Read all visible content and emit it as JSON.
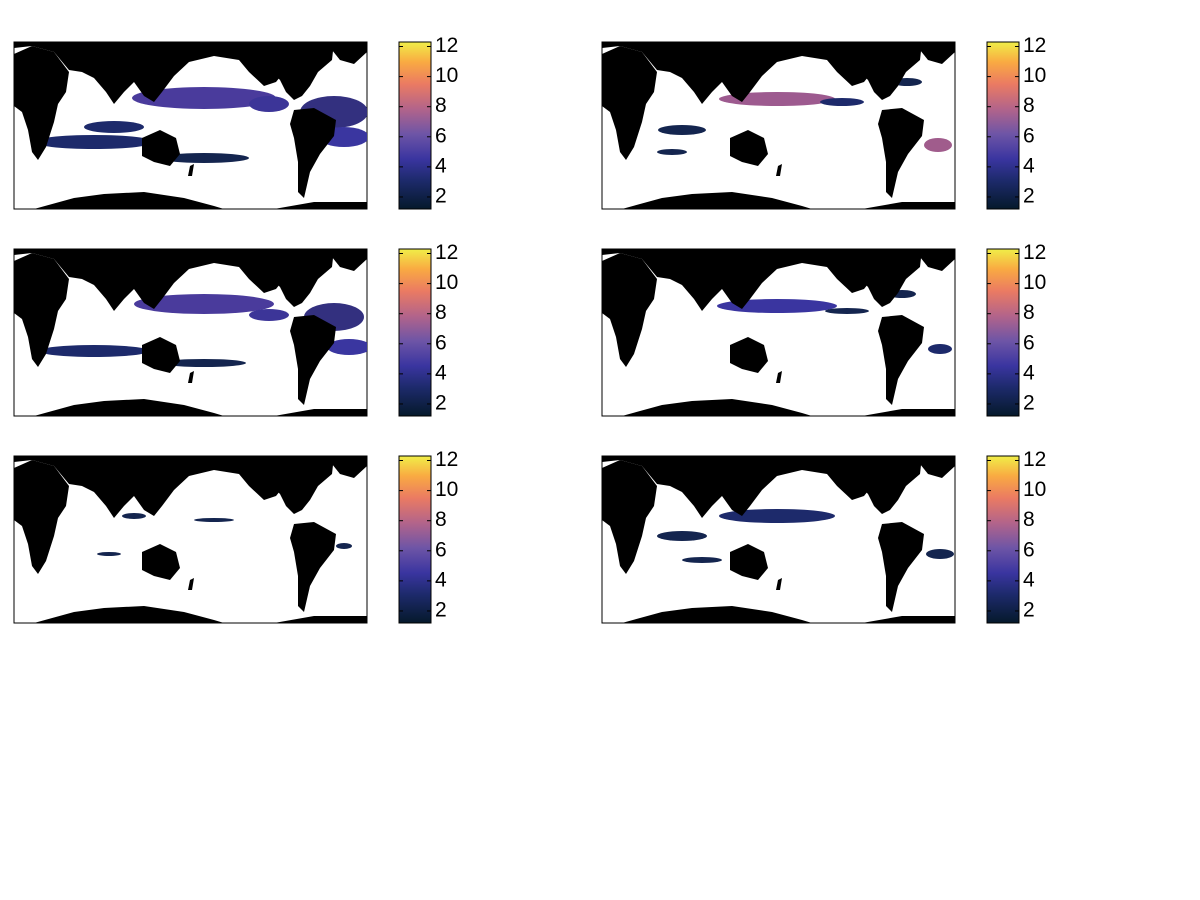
{
  "panels": [
    {
      "colorbar": {
        "clim": [
          1.2,
          12.3
        ],
        "ticks": [
          2,
          4,
          6,
          8,
          10,
          12
        ]
      }
    },
    {
      "colorbar": {
        "clim": [
          1.2,
          12.3
        ],
        "ticks": [
          2,
          4,
          6,
          8,
          10,
          12
        ]
      }
    },
    {
      "colorbar": {
        "clim": [
          1.2,
          12.3
        ],
        "ticks": [
          2,
          4,
          6,
          8,
          10,
          12
        ]
      }
    },
    {
      "colorbar": {
        "clim": [
          1.2,
          12.3
        ],
        "ticks": [
          2,
          4,
          6,
          8,
          10,
          12
        ]
      }
    },
    {
      "colorbar": {
        "clim": [
          1.2,
          12.3
        ],
        "ticks": [
          2,
          4,
          6,
          8,
          10,
          12
        ]
      }
    },
    {
      "colorbar": {
        "clim": [
          1.2,
          12.3
        ],
        "ticks": [
          2,
          4,
          6,
          8,
          10,
          12
        ]
      }
    }
  ]
}
